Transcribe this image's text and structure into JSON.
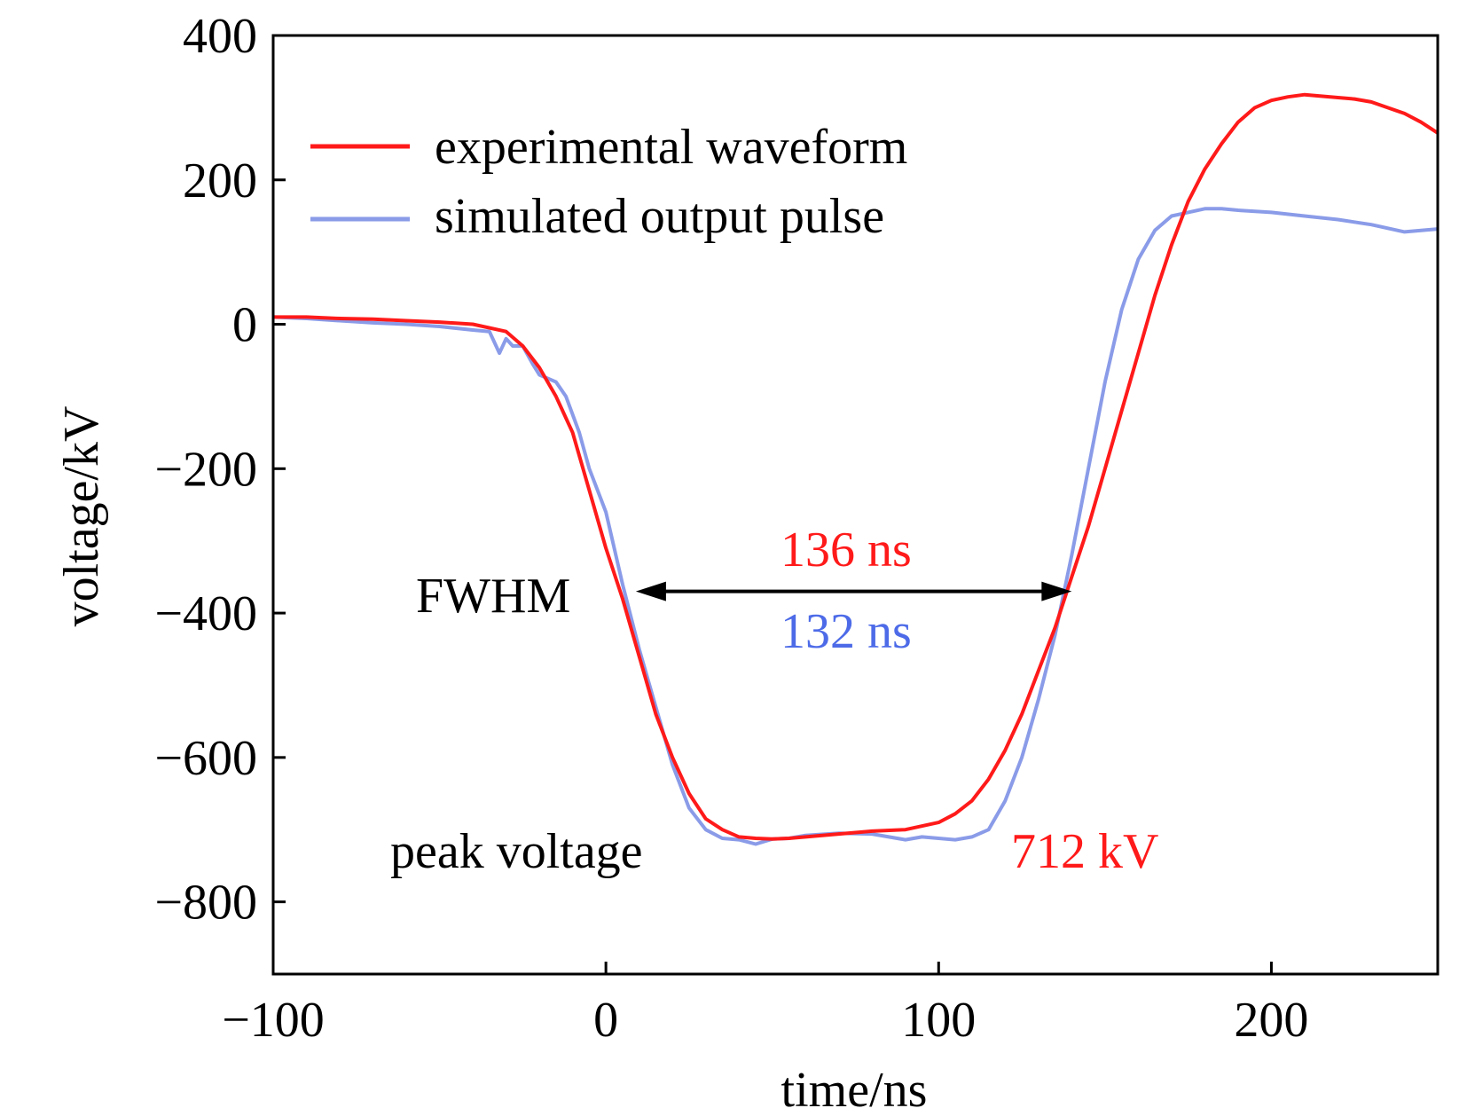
{
  "chart_data": {
    "type": "line",
    "title": "",
    "xlabel": "time/ns",
    "ylabel": "voltage/kV",
    "xlim": [
      -100,
      250
    ],
    "ylim": [
      -900,
      400
    ],
    "xticks": [
      -100,
      0,
      100,
      200
    ],
    "yticks": [
      400,
      200,
      0,
      -200,
      -400,
      -600,
      -800
    ],
    "xtick_labels": [
      "−100",
      "0",
      "100",
      "200"
    ],
    "ytick_labels": [
      "400",
      "200",
      "0",
      "−200",
      "−400",
      "−600",
      "−800"
    ],
    "grid": false,
    "legend_position": "top-left",
    "series": [
      {
        "name": "experimental waveform",
        "color": "#ff1a1a",
        "x": [
          -100,
          -90,
          -80,
          -70,
          -60,
          -50,
          -40,
          -30,
          -25,
          -20,
          -15,
          -10,
          -5,
          0,
          5,
          10,
          15,
          20,
          25,
          30,
          35,
          40,
          45,
          50,
          55,
          60,
          70,
          80,
          90,
          100,
          105,
          110,
          115,
          120,
          125,
          130,
          135,
          140,
          145,
          150,
          155,
          160,
          165,
          170,
          175,
          180,
          185,
          190,
          195,
          200,
          205,
          210,
          215,
          220,
          225,
          230,
          235,
          240,
          245,
          250
        ],
        "y": [
          10,
          10,
          8,
          7,
          5,
          3,
          0,
          -10,
          -30,
          -60,
          -100,
          -150,
          -230,
          -310,
          -380,
          -460,
          -540,
          -600,
          -650,
          -685,
          -700,
          -710,
          -712,
          -713,
          -712,
          -710,
          -706,
          -702,
          -700,
          -690,
          -678,
          -660,
          -630,
          -590,
          -540,
          -480,
          -420,
          -350,
          -280,
          -200,
          -120,
          -40,
          40,
          110,
          170,
          215,
          250,
          280,
          300,
          310,
          315,
          318,
          316,
          314,
          312,
          308,
          300,
          292,
          280,
          265
        ]
      },
      {
        "name": "simulated output pulse",
        "color": "#8a9be8",
        "x": [
          -100,
          -90,
          -80,
          -70,
          -60,
          -50,
          -40,
          -35,
          -32,
          -30,
          -28,
          -25,
          -22,
          -20,
          -15,
          -12,
          -8,
          -5,
          0,
          5,
          10,
          15,
          20,
          25,
          30,
          35,
          40,
          45,
          50,
          55,
          60,
          70,
          80,
          90,
          95,
          100,
          105,
          110,
          115,
          120,
          125,
          130,
          135,
          140,
          145,
          150,
          155,
          160,
          165,
          170,
          175,
          180,
          185,
          190,
          200,
          210,
          220,
          230,
          240,
          250
        ],
        "y": [
          10,
          8,
          5,
          2,
          0,
          -3,
          -8,
          -10,
          -40,
          -20,
          -30,
          -30,
          -55,
          -70,
          -80,
          -100,
          -150,
          -200,
          -260,
          -360,
          -450,
          -530,
          -610,
          -670,
          -700,
          -712,
          -714,
          -720,
          -713,
          -712,
          -708,
          -705,
          -706,
          -714,
          -710,
          -712,
          -714,
          -710,
          -700,
          -660,
          -600,
          -520,
          -430,
          -320,
          -200,
          -80,
          20,
          90,
          130,
          150,
          155,
          160,
          160,
          158,
          155,
          150,
          145,
          138,
          128,
          132
        ]
      }
    ],
    "annotations": {
      "fwhm_label": "FWHM",
      "exp_fwhm": "136 ns",
      "sim_fwhm": "132 ns",
      "peak_label": "peak voltage",
      "peak_value": "712 kV",
      "fwhm_arrow_x": [
        9,
        140
      ],
      "fwhm_arrow_y": -370
    }
  }
}
